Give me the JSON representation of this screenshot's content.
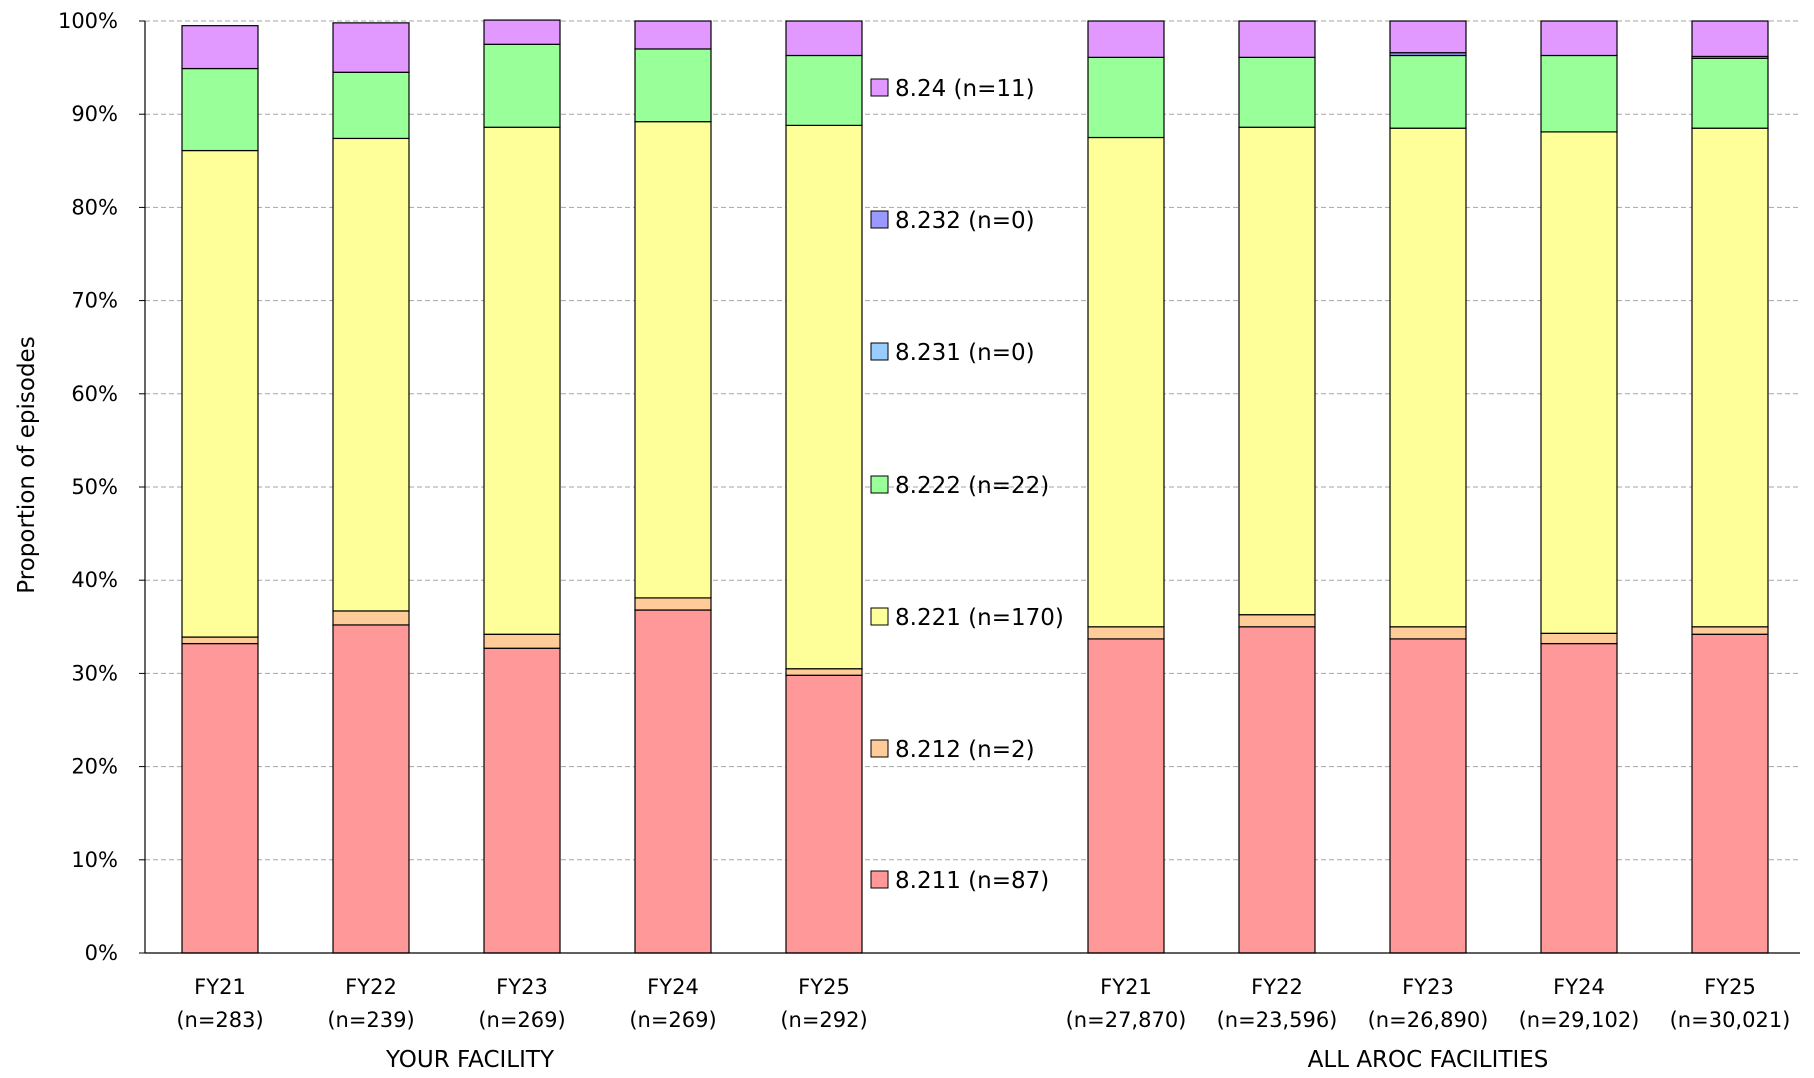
{
  "chart_data": {
    "type": "bar",
    "stacked": true,
    "ylabel": "Proportion of episodes",
    "ylim": [
      0,
      100
    ],
    "y_ticks": [
      "0%",
      "10%",
      "20%",
      "30%",
      "40%",
      "50%",
      "60%",
      "70%",
      "80%",
      "90%",
      "100%"
    ],
    "grid": true,
    "legend_position": "middle",
    "groups": [
      {
        "label": "YOUR FACILITY",
        "categories": [
          {
            "year": "FY21",
            "n": "(n=283)"
          },
          {
            "year": "FY22",
            "n": "(n=239)"
          },
          {
            "year": "FY23",
            "n": "(n=269)"
          },
          {
            "year": "FY24",
            "n": "(n=269)"
          },
          {
            "year": "FY25",
            "n": "(n=292)"
          }
        ]
      },
      {
        "label": "ALL AROC FACILITIES",
        "categories": [
          {
            "year": "FY21",
            "n": "(n=27,870)"
          },
          {
            "year": "FY22",
            "n": "(n=23,596)"
          },
          {
            "year": "FY23",
            "n": "(n=26,890)"
          },
          {
            "year": "FY24",
            "n": "(n=29,102)"
          },
          {
            "year": "FY25",
            "n": "(n=30,021)"
          }
        ]
      }
    ],
    "series": [
      {
        "name": "8.211 (n=87)",
        "color": "#FF9999",
        "values": [
          33.2,
          35.2,
          32.7,
          36.8,
          29.8,
          33.7,
          35.0,
          33.7,
          33.2,
          34.2
        ]
      },
      {
        "name": "8.212 (n=2)",
        "color": "#FFCC99",
        "values": [
          0.7,
          1.5,
          1.5,
          1.3,
          0.7,
          1.3,
          1.3,
          1.3,
          1.1,
          0.8
        ]
      },
      {
        "name": "8.221 (n=170)",
        "color": "#FFFF99",
        "values": [
          52.2,
          50.7,
          54.4,
          51.1,
          58.3,
          52.5,
          52.3,
          53.5,
          53.8,
          53.5
        ]
      },
      {
        "name": "8.222 (n=22)",
        "color": "#99FF99",
        "values": [
          8.8,
          7.1,
          8.9,
          7.8,
          7.5,
          8.6,
          7.5,
          7.8,
          8.2,
          7.5
        ]
      },
      {
        "name": "8.231 (n=0)",
        "color": "#99CCFF",
        "values": [
          0.0,
          0.0,
          0.0,
          0.0,
          0.0,
          0.0,
          0.0,
          0.0,
          0.0,
          0.0
        ]
      },
      {
        "name": "8.232 (n=0)",
        "color": "#9999FF",
        "values": [
          0.0,
          0.0,
          0.0,
          0.0,
          0.0,
          0.0,
          0.0,
          0.3,
          0.0,
          0.2
        ]
      },
      {
        "name": "8.24 (n=11)",
        "color": "#E299FF",
        "values": [
          4.6,
          5.3,
          2.6,
          3.0,
          3.7,
          3.9,
          3.9,
          3.4,
          3.7,
          3.8
        ]
      }
    ],
    "legend_order": [
      "8.24 (n=11)",
      "8.232 (n=0)",
      "8.231 (n=0)",
      "8.222 (n=22)",
      "8.221 (n=170)",
      "8.212 (n=2)",
      "8.211 (n=87)"
    ]
  }
}
